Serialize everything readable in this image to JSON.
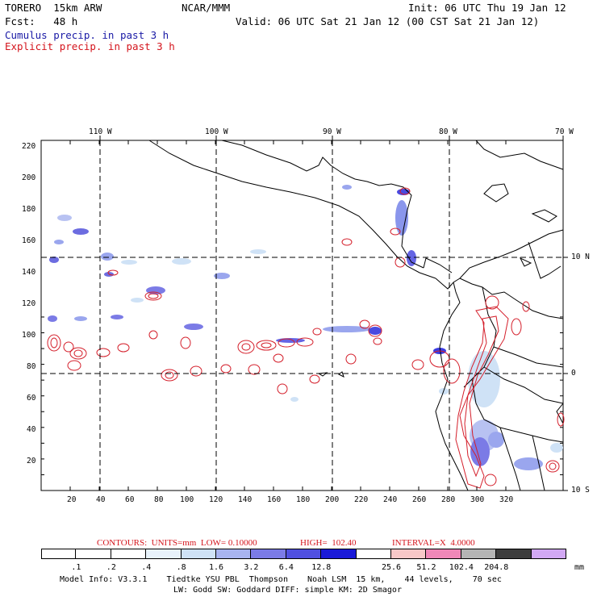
{
  "header": {
    "model": "TORERO  15km ARW",
    "org": "NCAR/MMM",
    "init": "Init: 06 UTC Thu 19 Jan 12",
    "fcst": "Fcst:   48 h",
    "valid": "Valid: 06 UTC Sat 21 Jan 12 (00 CST Sat 21 Jan 12)",
    "field1": "Cumulus precip. in past 3 h",
    "field2": "Explicit precip. in past 3 h"
  },
  "map": {
    "lon_labels": [
      "110 W",
      "100 W",
      "90 W",
      "80 W",
      "70 W"
    ],
    "lat_labels": [
      "10 N",
      "0",
      "10 S"
    ],
    "y_ticks": [
      "220",
      "200",
      "180",
      "160",
      "140",
      "120",
      "100",
      "80",
      "60",
      "40",
      "20"
    ],
    "x_ticks": [
      "20",
      "40",
      "60",
      "80",
      "100",
      "120",
      "140",
      "160",
      "180",
      "200",
      "220",
      "240",
      "260",
      "280",
      "300",
      "320"
    ]
  },
  "contours": {
    "units": "CONTOURS:  UNITS=mm  LOW= 0.10000",
    "high": "HIGH=  102.40",
    "interval": "INTERVAL=X  4.0000"
  },
  "colorbar": {
    "labels": [
      ".1",
      ".2",
      ".4",
      ".8",
      "1.6",
      "3.2",
      "6.4",
      "12.8",
      "25.6",
      "51.2",
      "102.4",
      "204.8"
    ],
    "unit": "mm",
    "colors": [
      "#ffffff",
      "#ffffff",
      "#ffffff",
      "#e8f2fb",
      "#cfe2f6",
      "#a8b4f0",
      "#7b7be6",
      "#5050e0",
      "#1a1ad8",
      "#ffffff",
      "#f7c8c8",
      "#f088b8",
      "#b4b4b4",
      "#3c3c3c",
      "#d2a8f4"
    ]
  },
  "footer": {
    "line1": "Model Info: V3.3.1    Tiedtke YSU PBL  Thompson    Noah LSM  15 km,    44 levels,    70 sec",
    "line2": "LW: Godd SW: Goddard DIFF: simple KM: 2D Smagor"
  }
}
